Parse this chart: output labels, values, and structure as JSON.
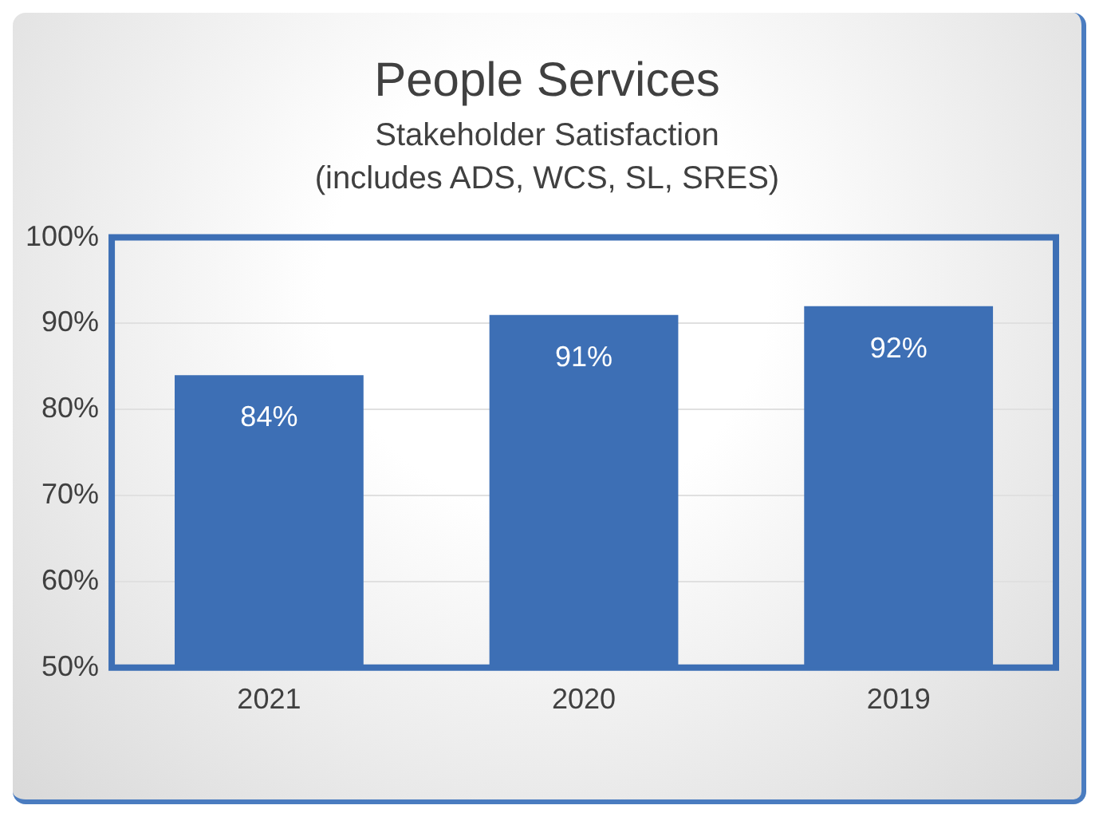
{
  "chart_data": {
    "type": "bar",
    "title": "People Services",
    "subtitle": "Stakeholder Satisfaction",
    "annotations": [
      "(includes ADS, WCS, SL, SRES)"
    ],
    "categories": [
      "2021",
      "2020",
      "2019"
    ],
    "values": [
      84,
      91,
      92
    ],
    "value_labels": [
      "84%",
      "91%",
      "92%"
    ],
    "color": "#3d6fb5",
    "ylim": [
      50,
      100
    ],
    "yticks": [
      {
        "value": 50,
        "label": "50%"
      },
      {
        "value": 60,
        "label": "60%"
      },
      {
        "value": 70,
        "label": "70%"
      },
      {
        "value": 80,
        "label": "80%"
      },
      {
        "value": 90,
        "label": "90%"
      },
      {
        "value": 100,
        "label": "100%"
      }
    ],
    "grid": "y",
    "legend": false
  }
}
